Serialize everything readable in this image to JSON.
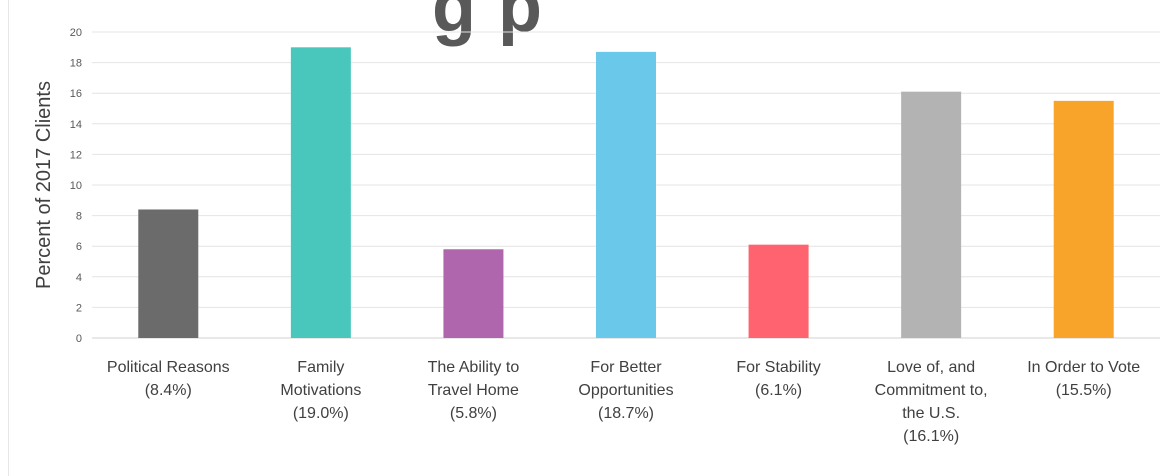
{
  "chart_data": {
    "type": "bar",
    "title_fragment": "g           p",
    "ylabel": "Percent of 2017 Clients",
    "ylim": [
      0,
      20
    ],
    "yticks": [
      0,
      2,
      4,
      6,
      8,
      10,
      12,
      14,
      16,
      18,
      20
    ],
    "grid": true,
    "categories": [
      [
        "Political Reasons",
        "(8.4%)"
      ],
      [
        "Family",
        "Motivations",
        "(19.0%)"
      ],
      [
        "The Ability to",
        "Travel Home",
        "(5.8%)"
      ],
      [
        "For Better",
        "Opportunities",
        "(18.7%)"
      ],
      [
        "For Stability",
        "(6.1%)"
      ],
      [
        "Love of, and",
        "Commitment to,",
        "the U.S.",
        "(16.1%)"
      ],
      [
        "In Order to Vote",
        "(15.5%)"
      ]
    ],
    "values": [
      8.4,
      19.0,
      5.8,
      18.7,
      6.1,
      16.1,
      15.5
    ],
    "colors": [
      "#6b6b6b",
      "#4ac7bd",
      "#b066ad",
      "#6ac8ea",
      "#fe636f",
      "#b3b3b3",
      "#f8a42b"
    ]
  }
}
